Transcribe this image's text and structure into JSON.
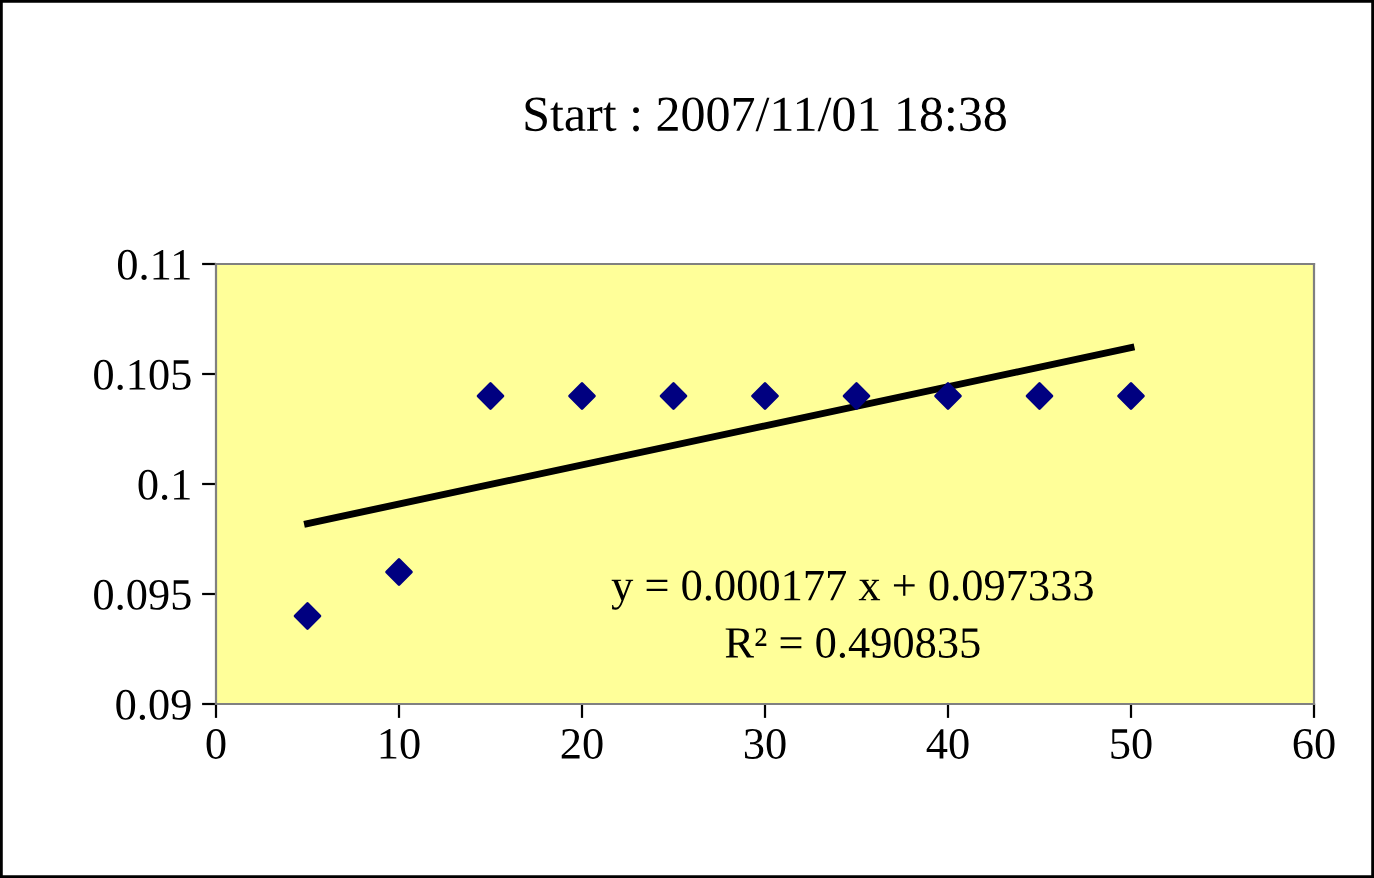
{
  "chart_data": {
    "type": "scatter",
    "title": "Start : 2007/11/01 18:38",
    "series": [
      {
        "color": "#000080",
        "marker": "diamond",
        "x": [
          5,
          10,
          15,
          20,
          25,
          30,
          35,
          40,
          45,
          50
        ],
        "values": [
          0.094,
          0.096,
          0.104,
          0.104,
          0.104,
          0.104,
          0.104,
          0.104,
          0.104,
          0.104
        ]
      },
      {
        "type": "line",
        "color": "#000000",
        "marker": "none",
        "line_style": "solid",
        "x": [
          5,
          50
        ],
        "values": [
          0.0982,
          0.1062
        ]
      }
    ],
    "xlim": [
      0,
      60
    ],
    "xticks": [
      0,
      10,
      20,
      30,
      40,
      50,
      60
    ],
    "ylim": [
      0.09,
      0.11
    ],
    "yticks": [
      0.09,
      0.095,
      0.1,
      0.105,
      0.11
    ],
    "annotations": [
      "y = 0.000177 x + 0.097333",
      "R² = 0.490835"
    ],
    "grid": false,
    "legend": false
  }
}
